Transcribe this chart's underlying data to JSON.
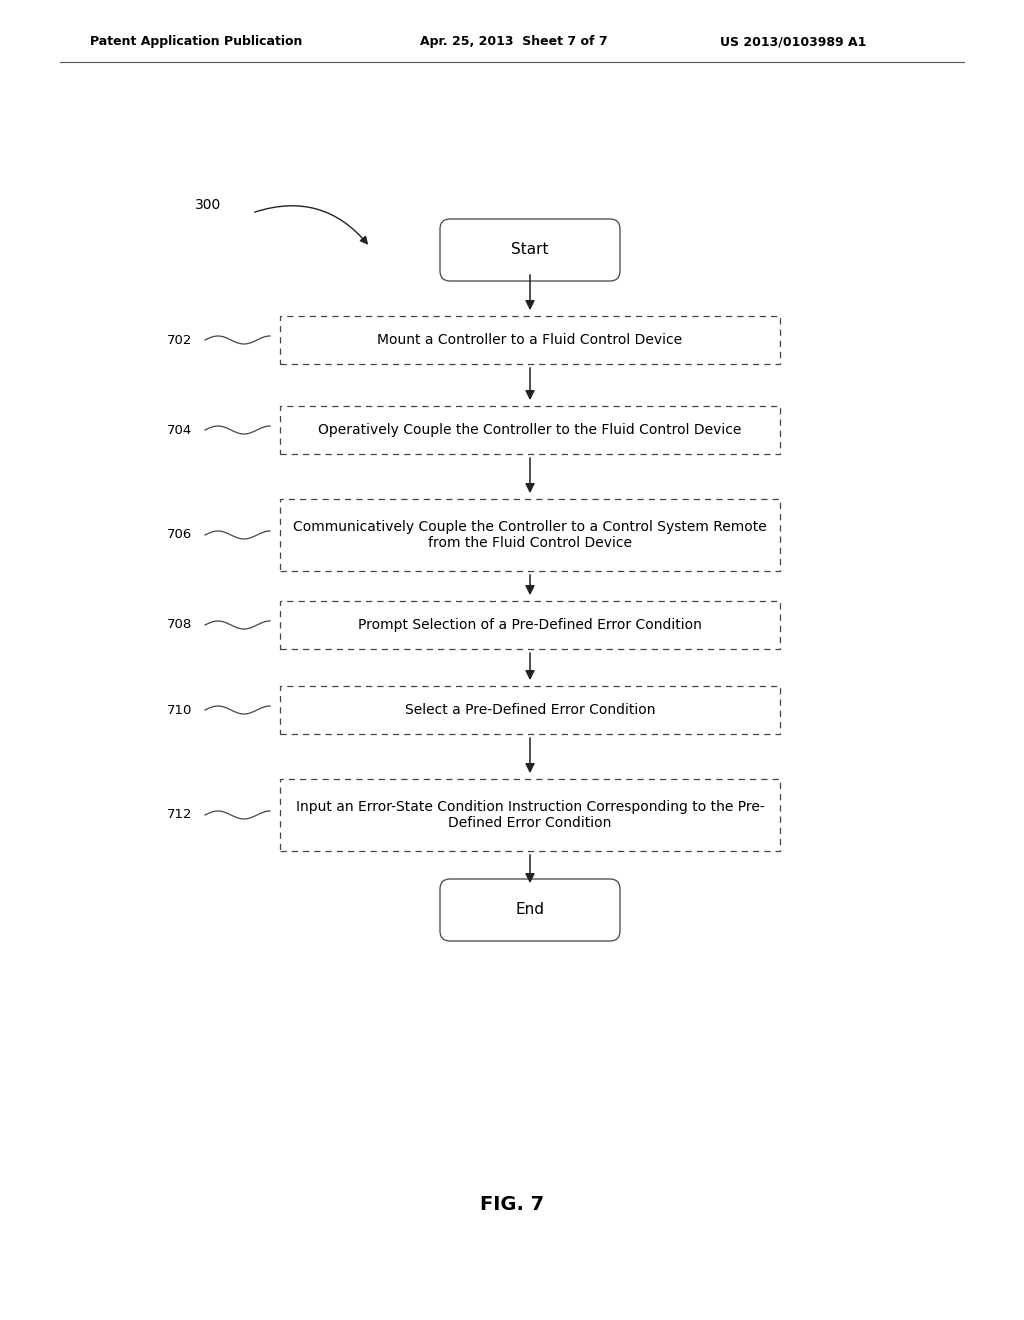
{
  "header_left": "Patent Application Publication",
  "header_center": "Apr. 25, 2013  Sheet 7 of 7",
  "header_right": "US 2013/0103989 A1",
  "figure_label": "FIG. 7",
  "bg_color": "#ffffff",
  "text_color": "#000000",
  "box_edge_color": "#444444",
  "arrow_color": "#222222",
  "steps": [
    {
      "id": "start",
      "type": "oval",
      "text": "Start",
      "label": null,
      "two_line": false
    },
    {
      "id": "702",
      "type": "rect",
      "text": "Mount a Controller to a Fluid Control Device",
      "label": "702",
      "two_line": false
    },
    {
      "id": "704",
      "type": "rect",
      "text": "Operatively Couple the Controller to the Fluid Control Device",
      "label": "704",
      "two_line": false
    },
    {
      "id": "706",
      "type": "rect",
      "text": "Communicatively Couple the Controller to a Control System Remote\nfrom the Fluid Control Device",
      "label": "706",
      "two_line": true
    },
    {
      "id": "708",
      "type": "rect",
      "text": "Prompt Selection of a Pre-Defined Error Condition",
      "label": "708",
      "two_line": false
    },
    {
      "id": "710",
      "type": "rect",
      "text": "Select a Pre-Defined Error Condition",
      "label": "710",
      "two_line": false
    },
    {
      "id": "712",
      "type": "rect",
      "text": "Input an Error-State Condition Instruction Corresponding to the Pre-\nDefined Error Condition",
      "label": "712",
      "two_line": true
    },
    {
      "id": "end",
      "type": "oval",
      "text": "End",
      "label": null,
      "two_line": false
    }
  ]
}
